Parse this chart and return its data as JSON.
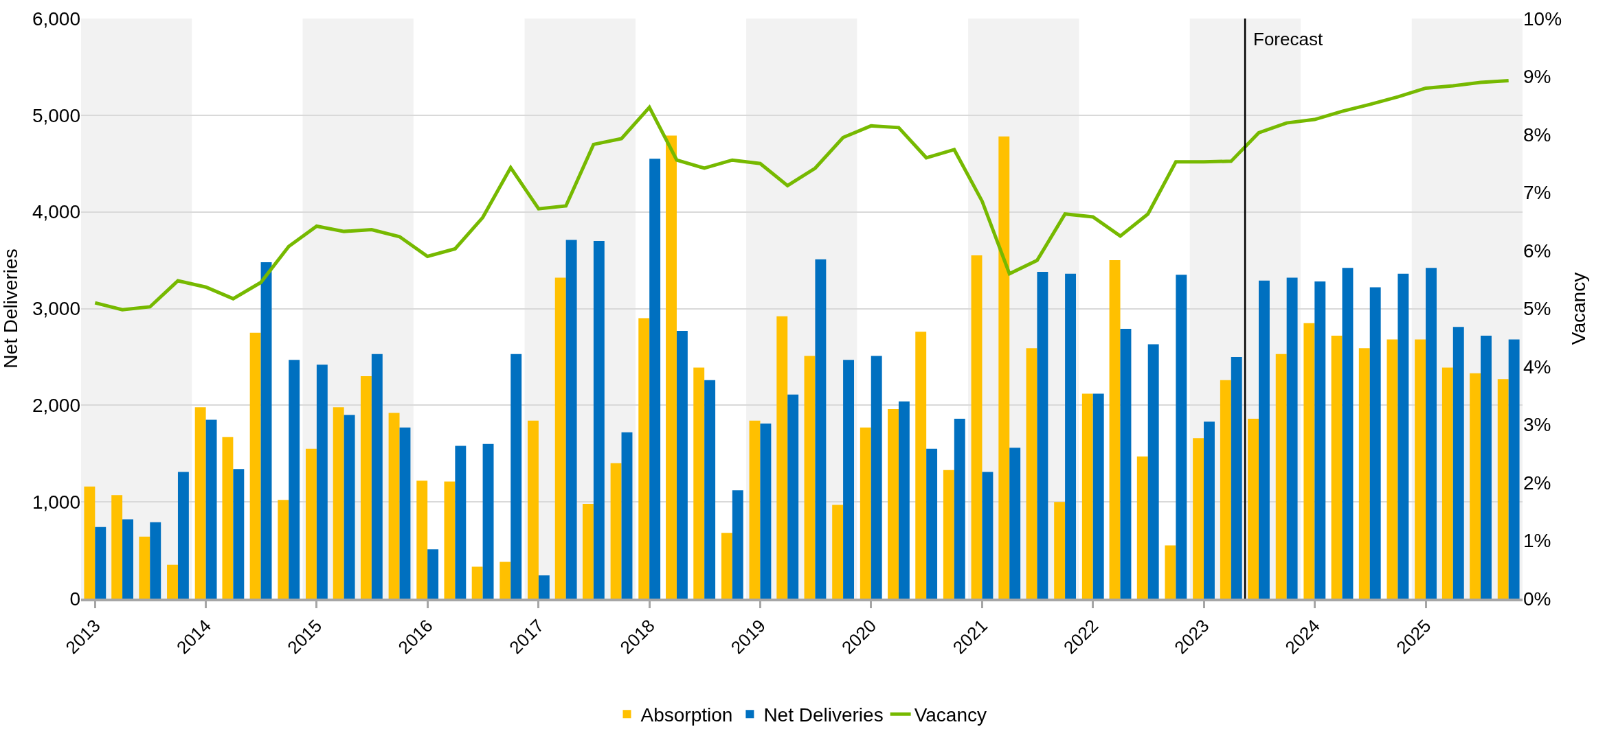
{
  "chart_data": {
    "type": "bar",
    "x": [
      "2013-01",
      "2013-04",
      "2013-07",
      "2013-10",
      "2014-01",
      "2014-04",
      "2014-07",
      "2014-10",
      "2015-01",
      "2015-04",
      "2015-07",
      "2015-10",
      "2016-01",
      "2016-04",
      "2016-07",
      "2016-10",
      "2017-01",
      "2017-04",
      "2017-07",
      "2017-10",
      "2018-01",
      "2018-04",
      "2018-07",
      "2018-10",
      "2019-01",
      "2019-04",
      "2019-07",
      "2019-10",
      "2020-01",
      "2020-04",
      "2020-07",
      "2020-10",
      "2021-01",
      "2021-04",
      "2021-07",
      "2021-10",
      "2022-01",
      "2022-04",
      "2022-07",
      "2022-10",
      "2023-01",
      "2023-04",
      "2023-07",
      "2023-10",
      "2024-01",
      "2024-04",
      "2024-07",
      "2024-10",
      "2025-01",
      "2025-04",
      "2025-07",
      "2025-10"
    ],
    "series": [
      {
        "name": "Absorption",
        "color": "#ffc000",
        "values": [
          1160,
          1070,
          640,
          350,
          1980,
          1670,
          2750,
          1020,
          1550,
          1980,
          2300,
          1920,
          1220,
          1210,
          330,
          380,
          1840,
          3320,
          980,
          1400,
          2900,
          4790,
          2390,
          680,
          1840,
          2920,
          2510,
          970,
          1770,
          1960,
          2760,
          1330,
          3550,
          4780,
          2590,
          1000,
          2120,
          3500,
          1470,
          550,
          1660,
          2260,
          1860,
          2530,
          2850,
          2720,
          2590,
          2680,
          2680,
          2390,
          2330,
          2270
        ]
      },
      {
        "name": "Net Deliveries",
        "color": "#0070c0",
        "values": [
          740,
          820,
          790,
          1310,
          1850,
          1340,
          3480,
          2470,
          2420,
          1900,
          2530,
          1770,
          510,
          1580,
          1600,
          2530,
          240,
          3710,
          3700,
          1720,
          4550,
          2770,
          2260,
          1120,
          1810,
          2110,
          3510,
          2470,
          2510,
          2040,
          1550,
          1860,
          1310,
          1560,
          3380,
          3360,
          2120,
          2790,
          2630,
          3350,
          1830,
          2500,
          3290,
          3320,
          3280,
          3420,
          3220,
          3360,
          3420,
          2810,
          2720,
          2680
        ]
      },
      {
        "name": "Vacancy",
        "type": "line",
        "axis": "y2",
        "color": "#76b900",
        "values": [
          5.1,
          4.98,
          5.03,
          5.48,
          5.37,
          5.17,
          5.45,
          6.07,
          6.42,
          6.33,
          6.36,
          6.24,
          5.9,
          6.03,
          6.57,
          7.43,
          6.72,
          6.77,
          7.83,
          7.93,
          8.47,
          7.56,
          7.42,
          7.56,
          7.5,
          7.12,
          7.42,
          7.95,
          8.15,
          8.12,
          7.6,
          7.74,
          6.85,
          5.6,
          5.83,
          6.63,
          6.58,
          6.25,
          6.63,
          7.53,
          7.53,
          7.54,
          8.03,
          8.2,
          8.26,
          8.4,
          8.52,
          8.65,
          8.8,
          8.84,
          8.9,
          8.93
        ]
      }
    ],
    "ylabel": "Net Deliveries",
    "y2label": "Vacancy",
    "xlim": [
      "2012-11-16",
      "2025-11-16"
    ],
    "xticks": [
      {
        "value": "2013-01",
        "label": "2013"
      },
      {
        "value": "2014-01",
        "label": "2014"
      },
      {
        "value": "2015-01",
        "label": "2015"
      },
      {
        "value": "2016-01",
        "label": "2016"
      },
      {
        "value": "2017-01",
        "label": "2017"
      },
      {
        "value": "2018-01",
        "label": "2018"
      },
      {
        "value": "2019-01",
        "label": "2019"
      },
      {
        "value": "2020-01",
        "label": "2020"
      },
      {
        "value": "2021-01",
        "label": "2021"
      },
      {
        "value": "2022-01",
        "label": "2022"
      },
      {
        "value": "2023-01",
        "label": "2023"
      },
      {
        "value": "2024-01",
        "label": "2024"
      },
      {
        "value": "2025-01",
        "label": "2025"
      }
    ],
    "ylim": [
      0,
      6000
    ],
    "yticks": [
      0,
      {
        "value": 1000,
        "label": "1,000"
      },
      {
        "value": 2000,
        "label": "2,000"
      },
      {
        "value": 3000,
        "label": "3,000"
      },
      {
        "value": 4000,
        "label": "4,000"
      },
      {
        "value": 5000,
        "label": "5,000"
      },
      {
        "value": 6000,
        "label": "6,000"
      }
    ],
    "y2lim": [
      0,
      10
    ],
    "y2ticks": [
      {
        "value": 0,
        "label": "0%"
      },
      {
        "value": 1,
        "label": "1%"
      },
      {
        "value": 2,
        "label": "2%"
      },
      {
        "value": 3,
        "label": "3%"
      },
      {
        "value": 4,
        "label": "4%"
      },
      {
        "value": 5,
        "label": "5%"
      },
      {
        "value": 6,
        "label": "6%"
      },
      {
        "value": 7,
        "label": "7%"
      },
      {
        "value": 8,
        "label": "8%"
      },
      {
        "value": 9,
        "label": "9%"
      },
      {
        "value": 10,
        "label": "10%"
      }
    ],
    "bands": [
      {
        "axis": "x",
        "from": "2012-11-16",
        "to": "2013-11-16",
        "color": "#f2f2f2"
      },
      {
        "axis": "x",
        "from": "2014-11-16",
        "to": "2015-11-16",
        "color": "#f2f2f2"
      },
      {
        "axis": "x",
        "from": "2016-11-16",
        "to": "2017-11-16",
        "color": "#f2f2f2"
      },
      {
        "axis": "x",
        "from": "2018-11-16",
        "to": "2019-11-16",
        "color": "#f2f2f2"
      },
      {
        "axis": "x",
        "from": "2020-11-16",
        "to": "2021-11-16",
        "color": "#f2f2f2"
      },
      {
        "axis": "x",
        "from": "2022-11-16",
        "to": "2023-11-16",
        "color": "#f2f2f2"
      },
      {
        "axis": "x",
        "from": "2024-11-16",
        "to": "2025-11-16",
        "color": "#f2f2f2"
      }
    ],
    "ref_lines": [
      {
        "axis": "x",
        "value": "2023-05-17",
        "label": "Forecast",
        "color": "#000000",
        "line_style": "solid"
      }
    ],
    "grid": "y",
    "legend": "bottom",
    "marker": "none",
    "line_style": "solid"
  }
}
